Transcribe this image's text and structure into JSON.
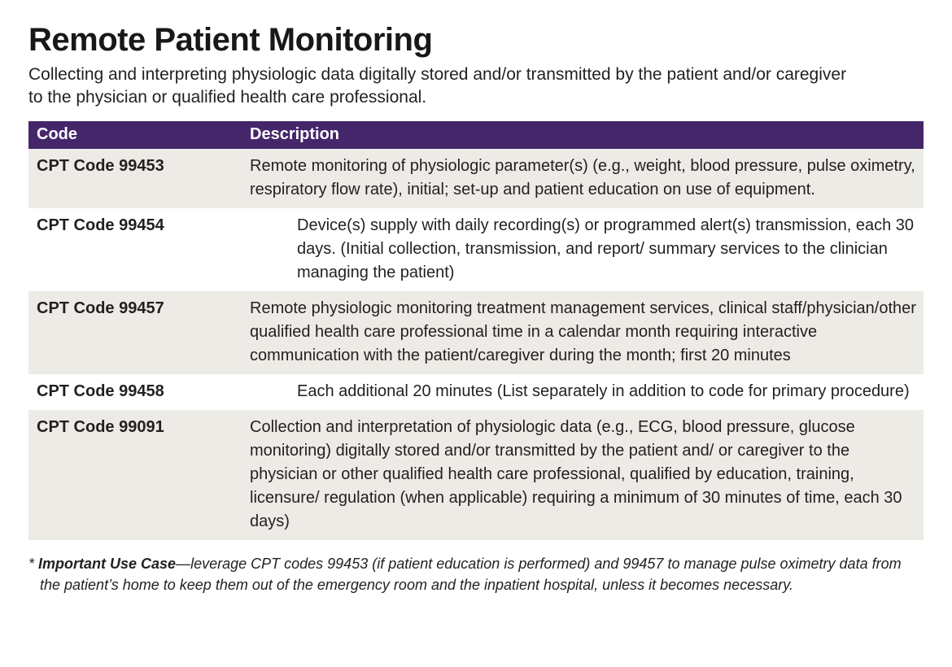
{
  "page": {
    "title": "Remote Patient Monitoring",
    "subtitle": "Collecting and interpreting physiologic data digitally stored and/or transmitted by the patient and/or caregiver to the physician or qualified health care professional."
  },
  "table": {
    "headers": {
      "code": "Code",
      "description": "Description"
    },
    "rows": [
      {
        "code": "CPT Code 99453",
        "description": "Remote monitoring of physiologic parameter(s) (e.g., weight, blood pressure, pulse oximetry, respiratory flow rate), initial; set-up and patient education on use of equipment.",
        "indent": false
      },
      {
        "code": "CPT Code 99454",
        "description": "Device(s) supply with daily recording(s) or programmed alert(s) transmission, each 30 days. (Initial collection, transmission, and report/ summary services to the clinician managing the patient)",
        "indent": true
      },
      {
        "code": "CPT Code 99457",
        "description": "Remote physiologic monitoring treatment management services, clinical staff/physician/other qualified health care professional time in a calendar month requiring interactive communication with the patient/caregiver during the month; first 20 minutes",
        "indent": false
      },
      {
        "code": "CPT Code 99458",
        "description": "Each additional 20 minutes (List separately in addition to code for primary procedure)",
        "indent": true
      },
      {
        "code": "CPT Code 99091",
        "description": "Collection and interpretation of physiologic data (e.g., ECG, blood pressure, glucose monitoring) digitally stored and/or transmitted by the patient and/ or caregiver to the physician or other qualified health care professional, qualified by education, training, licensure/ regulation (when applicable) requiring a minimum of 30 minutes of time, each 30 days)",
        "indent": false
      }
    ]
  },
  "footnote": {
    "marker": "* ",
    "lead": "Important Use Case",
    "dash": "—",
    "body": "leverage CPT codes 99453 (if patient education is performed) and 99457 to manage pulse oximetry data from the patient’s home to keep them out of the emergency room and the inpatient hospital, unless it becomes necessary."
  },
  "colors": {
    "header_bg": "#46266A",
    "header_text": "#FFFFFF",
    "row_alt_bg": "#EDEBE5",
    "row_bg": "#FFFFFF",
    "text": "#231F20"
  }
}
